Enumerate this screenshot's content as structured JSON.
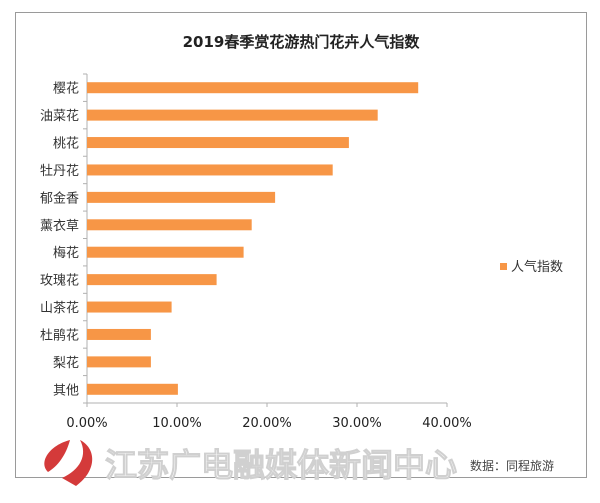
{
  "chart_data": {
    "type": "bar",
    "orientation": "horizontal",
    "title": "2019春季赏花游热门花卉人气指数",
    "categories": [
      "樱花",
      "油菜花",
      "桃花",
      "牡丹花",
      "郁金香",
      "薰衣草",
      "梅花",
      "玫瑰花",
      "山茶花",
      "杜鹃花",
      "梨花",
      "其他"
    ],
    "series": [
      {
        "name": "人气指数",
        "values": [
          36.8,
          32.3,
          29.1,
          27.3,
          20.9,
          18.3,
          17.4,
          14.4,
          9.4,
          7.1,
          7.1,
          10.1
        ],
        "color": "#f79646"
      }
    ],
    "xlim": [
      0,
      40
    ],
    "xticks": [
      "0.00%",
      "10.00%",
      "20.00%",
      "30.00%",
      "40.00%"
    ],
    "xlabel": "",
    "ylabel": "",
    "grid": false,
    "legend": "right"
  },
  "source": "数据：同程旅游",
  "watermark": "江苏广电融媒体新闻中心"
}
